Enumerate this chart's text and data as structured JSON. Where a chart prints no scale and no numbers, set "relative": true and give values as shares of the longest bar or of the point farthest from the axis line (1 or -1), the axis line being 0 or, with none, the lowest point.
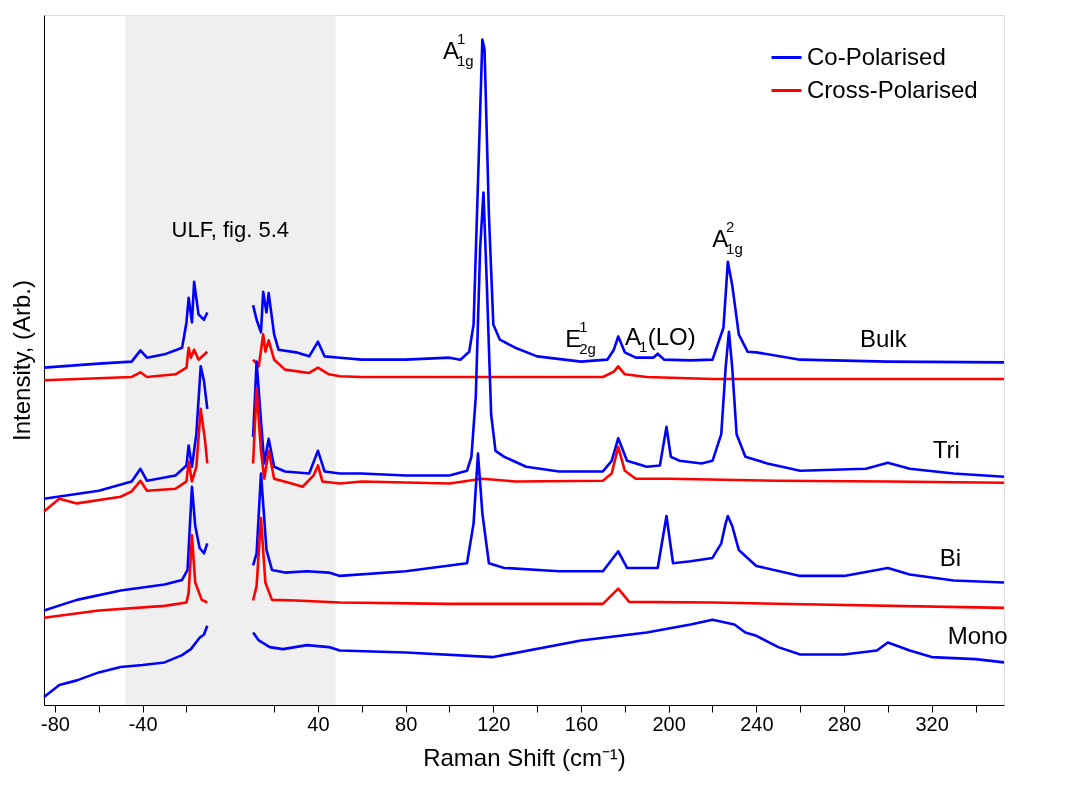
{
  "chart_data": {
    "type": "line",
    "xlabel": "Raman Shift (cm⁻¹)",
    "ylabel": "Intensity, (Arb.)",
    "relative": true,
    "legend": "top right",
    "xlim": [
      -85,
      353
    ],
    "xticks": [
      -80,
      {
        "value": -60,
        "label": null
      },
      -40,
      {
        "value": -20,
        "label": null
      },
      {
        "value": 20,
        "label": null
      },
      40,
      {
        "value": 60,
        "label": null
      },
      80,
      {
        "value": 100,
        "label": null
      },
      120,
      {
        "value": 140,
        "label": null
      },
      160,
      {
        "value": 180,
        "label": null
      },
      200,
      {
        "value": 220,
        "label": null
      },
      240,
      {
        "value": 260,
        "label": null
      },
      280,
      {
        "value": 300,
        "label": null
      },
      320,
      {
        "value": 340,
        "label": null
      }
    ],
    "bands": [
      {
        "axis": "x",
        "from": -48,
        "to": 48,
        "label": "ULF, fig. 5.4",
        "color": "#e4e4e4"
      }
    ],
    "annotations": [
      {
        "text": "A$^{1}$$_{1g}$",
        "x": 115,
        "y": 1.0
      },
      {
        "text": "E$^{1}$$_{2g}$",
        "x": 160,
        "y": 0.516
      },
      {
        "text": "A$_{1}$(LO)",
        "x": 198,
        "y": 0.519
      },
      {
        "text": "A$^{2}$$_{1g}$",
        "x": 227,
        "y": 0.666
      },
      {
        "text": "Bulk",
        "x": 300,
        "y": 0.516
      },
      {
        "text": "Tri",
        "x": 330,
        "y": 0.348
      },
      {
        "text": "Bi",
        "x": 330,
        "y": 0.187
      },
      {
        "text": "Mono",
        "x": 340,
        "y": 0.069
      }
    ],
    "series": [
      {
        "name": "Co-Polarised",
        "color": "#0000ff",
        "x": [
          -85,
          -60,
          -45,
          -41,
          -38,
          -30,
          -22,
          -20,
          -19,
          -17.5,
          -16.5,
          -14.5,
          -12,
          -10.5,
          0,
          10.4,
          12,
          14,
          15,
          16.5,
          17.5,
          20,
          22,
          30,
          36,
          40,
          43,
          50,
          60,
          80,
          100,
          105,
          109,
          111,
          113,
          115,
          116,
          118,
          120,
          123,
          130,
          140,
          160,
          172,
          175,
          177,
          180,
          185,
          193,
          195,
          198,
          210,
          220,
          225,
          227,
          229,
          232,
          236,
          240,
          260,
          300,
          353
        ],
        "values": [
          0.507,
          0.513,
          0.516,
          0.533,
          0.522,
          0.527,
          0.537,
          0.575,
          0.612,
          0.575,
          0.636,
          0.587,
          0.579,
          0.59,
          null,
          0.601,
          0.579,
          0.56,
          0.621,
          0.59,
          0.619,
          0.557,
          0.534,
          0.53,
          0.524,
          0.546,
          0.524,
          0.522,
          0.519,
          0.519,
          0.522,
          0.519,
          0.531,
          0.572,
          0.785,
          1.0,
          0.985,
          0.736,
          0.572,
          0.549,
          0.537,
          0.524,
          0.516,
          0.519,
          0.534,
          0.554,
          0.53,
          0.522,
          0.522,
          0.528,
          0.519,
          0.518,
          0.519,
          0.567,
          0.666,
          0.631,
          0.557,
          0.531,
          0.53,
          0.519,
          0.516,
          0.515
        ]
      },
      {
        "name": "Cross-Polarised",
        "color": "#ff0000",
        "x": [
          -85,
          -45,
          -41,
          -38,
          -25,
          -20,
          -19,
          -18,
          -16.5,
          -14.5,
          -10.5,
          0,
          10.4,
          13,
          15,
          16,
          17.5,
          20,
          25,
          36,
          40,
          45,
          50,
          60,
          110,
          170,
          175,
          177,
          180,
          190,
          220,
          353
        ],
        "values": [
          0.488,
          0.493,
          0.5,
          0.493,
          0.497,
          0.507,
          0.537,
          0.522,
          0.534,
          0.519,
          0.531,
          null,
          0.519,
          0.509,
          0.557,
          0.531,
          0.548,
          0.519,
          0.504,
          0.499,
          0.507,
          0.497,
          0.494,
          0.493,
          0.493,
          0.493,
          0.501,
          0.509,
          0.497,
          0.493,
          0.49,
          0.49
        ]
      },
      {
        "color": "#0000ff",
        "x": [
          -85,
          -60,
          -45,
          -41,
          -38,
          -25,
          -20,
          -19,
          -17.5,
          -15.5,
          -13.5,
          -12,
          -10.5,
          0,
          10.4,
          12,
          14,
          15.5,
          17.5,
          20,
          25,
          36,
          40,
          43,
          50,
          60,
          80,
          100,
          108,
          110,
          112,
          114,
          115.5,
          117,
          119,
          121,
          125,
          135,
          150,
          170,
          174,
          177,
          181,
          190,
          196,
          199,
          201,
          205,
          215,
          220,
          224,
          226,
          227.5,
          229,
          231,
          235,
          245,
          260,
          290,
          300,
          310,
          330,
          353
        ],
        "values": [
          0.31,
          0.322,
          0.336,
          0.355,
          0.337,
          0.345,
          0.36,
          0.39,
          0.358,
          0.407,
          0.509,
          0.487,
          0.445,
          null,
          0.403,
          0.516,
          0.427,
          0.363,
          0.4,
          0.358,
          0.351,
          0.348,
          0.382,
          0.351,
          0.348,
          0.348,
          0.345,
          0.345,
          0.352,
          0.373,
          0.463,
          0.687,
          0.77,
          0.636,
          0.437,
          0.382,
          0.373,
          0.358,
          0.351,
          0.351,
          0.367,
          0.401,
          0.367,
          0.358,
          0.36,
          0.418,
          0.373,
          0.367,
          0.363,
          0.367,
          0.407,
          0.507,
          0.561,
          0.507,
          0.407,
          0.373,
          0.363,
          0.352,
          0.355,
          0.364,
          0.355,
          0.348,
          0.343
        ]
      },
      {
        "color": "#ff0000",
        "x": [
          -85,
          -78,
          -70,
          -50,
          -45,
          -41,
          -38,
          -25,
          -20,
          -19,
          -17.5,
          -15.5,
          -13.5,
          -11.5,
          -10.5,
          0,
          10.4,
          12,
          14,
          15.5,
          17.5,
          20,
          28,
          33,
          38,
          40,
          42,
          50,
          60,
          100,
          115,
          130,
          170,
          174,
          177,
          180,
          185,
          200,
          250,
          300,
          353
        ],
        "values": [
          0.291,
          0.31,
          0.303,
          0.313,
          0.321,
          0.337,
          0.322,
          0.325,
          0.336,
          0.366,
          0.336,
          0.358,
          0.445,
          0.397,
          0.363,
          null,
          0.363,
          0.475,
          0.382,
          0.34,
          0.382,
          0.34,
          0.333,
          0.328,
          0.345,
          0.36,
          0.336,
          0.333,
          0.336,
          0.333,
          0.34,
          0.336,
          0.337,
          0.348,
          0.388,
          0.352,
          0.34,
          0.34,
          0.337,
          0.336,
          0.334
        ]
      },
      {
        "color": "#0000ff",
        "x": [
          -85,
          -70,
          -50,
          -30,
          -22,
          -19.5,
          -17.5,
          -16,
          -14,
          -12,
          -10.5,
          0,
          10.4,
          12,
          14,
          16.5,
          19,
          25,
          35,
          45,
          50,
          80,
          108,
          111,
          113,
          115,
          118,
          125,
          150,
          170,
          177,
          181,
          195,
          199,
          202,
          210,
          220,
          224,
          226,
          227,
          229,
          232,
          240,
          260,
          280,
          300,
          310,
          330,
          353
        ],
        "values": [
          0.142,
          0.158,
          0.172,
          0.181,
          0.188,
          0.203,
          0.328,
          0.269,
          0.236,
          0.228,
          0.243,
          null,
          0.21,
          0.228,
          0.348,
          0.233,
          0.203,
          0.199,
          0.201,
          0.199,
          0.194,
          0.201,
          0.213,
          0.273,
          0.378,
          0.288,
          0.213,
          0.206,
          0.201,
          0.201,
          0.231,
          0.206,
          0.206,
          0.284,
          0.213,
          0.216,
          0.221,
          0.243,
          0.273,
          0.284,
          0.269,
          0.233,
          0.209,
          0.194,
          0.194,
          0.206,
          0.196,
          0.187,
          0.184
        ]
      },
      {
        "color": "#ff0000",
        "x": [
          -85,
          -60,
          -30,
          -20,
          -19,
          -17.5,
          -16,
          -13,
          -10.5,
          0,
          10.4,
          12,
          14,
          16,
          19,
          30,
          50,
          100,
          170,
          177,
          182,
          220,
          353
        ],
        "values": [
          0.131,
          0.142,
          0.149,
          0.154,
          0.169,
          0.255,
          0.184,
          0.158,
          0.154,
          null,
          0.157,
          0.179,
          0.281,
          0.184,
          0.158,
          0.157,
          0.154,
          0.152,
          0.152,
          0.175,
          0.155,
          0.154,
          0.146
        ]
      },
      {
        "color": "#0000ff",
        "x": [
          -85,
          -78,
          -70,
          -60,
          -50,
          -40,
          -30,
          -22,
          -18,
          -14,
          -12,
          -10.5,
          0,
          10.4,
          13,
          18,
          24,
          35,
          45,
          50,
          80,
          120,
          160,
          190,
          210,
          220,
          230,
          235,
          240,
          250,
          260,
          280,
          295,
          300,
          310,
          320,
          340,
          353
        ],
        "values": [
          0.012,
          0.03,
          0.037,
          0.049,
          0.057,
          0.06,
          0.064,
          0.075,
          0.084,
          0.101,
          0.106,
          0.119,
          null,
          0.109,
          0.097,
          0.087,
          0.084,
          0.09,
          0.087,
          0.082,
          0.079,
          0.072,
          0.097,
          0.109,
          0.121,
          0.128,
          0.121,
          0.109,
          0.104,
          0.087,
          0.076,
          0.076,
          0.082,
          0.094,
          0.082,
          0.072,
          0.069,
          0.064
        ]
      }
    ]
  }
}
